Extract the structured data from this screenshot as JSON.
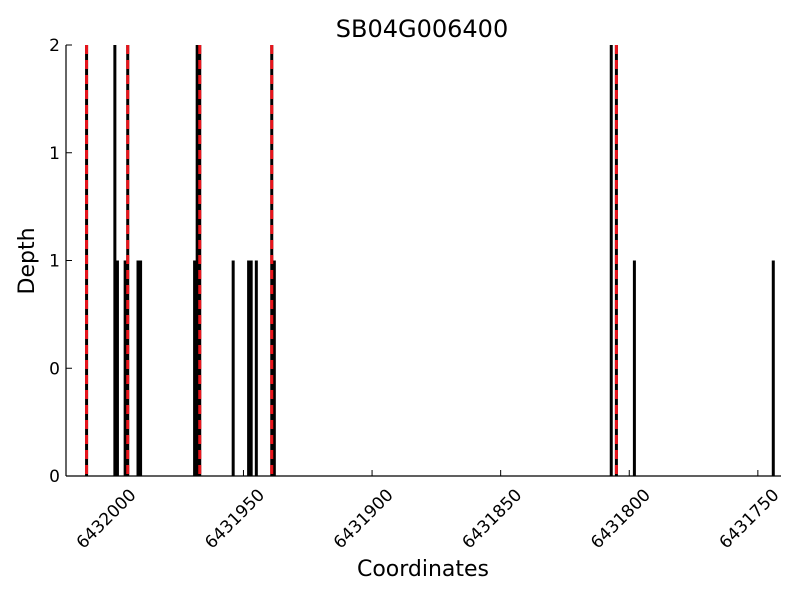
{
  "chart_data": {
    "type": "bar",
    "title": "SB04G006400",
    "xlabel": "Coordinates",
    "ylabel": "Depth",
    "x_axis_reversed": true,
    "xlim": [
      6432019,
      6431741
    ],
    "ylim": [
      0,
      2
    ],
    "x_ticks": [
      6432000,
      6431950,
      6431900,
      6431850,
      6431800,
      6431750
    ],
    "x_tick_labels": [
      "6432000",
      "6431950",
      "6431900",
      "6431850",
      "6431800",
      "6431750"
    ],
    "y_ticks": [
      0,
      0.5,
      1,
      1.5,
      2
    ],
    "y_tick_labels": [
      "0",
      "0",
      "1",
      "1",
      "2"
    ],
    "grid": false,
    "bar_color": "#000000",
    "marker_color": "#e8141b",
    "bars": [
      {
        "x": 6432011,
        "depth": 2
      },
      {
        "x": 6432000,
        "depth": 2
      },
      {
        "x": 6431999,
        "depth": 1
      },
      {
        "x": 6431996,
        "depth": 1
      },
      {
        "x": 6431995,
        "depth": 2
      },
      {
        "x": 6431991,
        "depth": 1
      },
      {
        "x": 6431990,
        "depth": 1
      },
      {
        "x": 6431969,
        "depth": 1
      },
      {
        "x": 6431968,
        "depth": 2
      },
      {
        "x": 6431967,
        "depth": 2
      },
      {
        "x": 6431954,
        "depth": 1
      },
      {
        "x": 6431948,
        "depth": 1
      },
      {
        "x": 6431947,
        "depth": 1
      },
      {
        "x": 6431945,
        "depth": 1
      },
      {
        "x": 6431939,
        "depth": 2
      },
      {
        "x": 6431938,
        "depth": 1
      },
      {
        "x": 6431807,
        "depth": 2
      },
      {
        "x": 6431805,
        "depth": 2
      },
      {
        "x": 6431798,
        "depth": 1
      },
      {
        "x": 6431744,
        "depth": 1
      }
    ],
    "markers": [
      6432011,
      6431995,
      6431967,
      6431939,
      6431805
    ]
  }
}
